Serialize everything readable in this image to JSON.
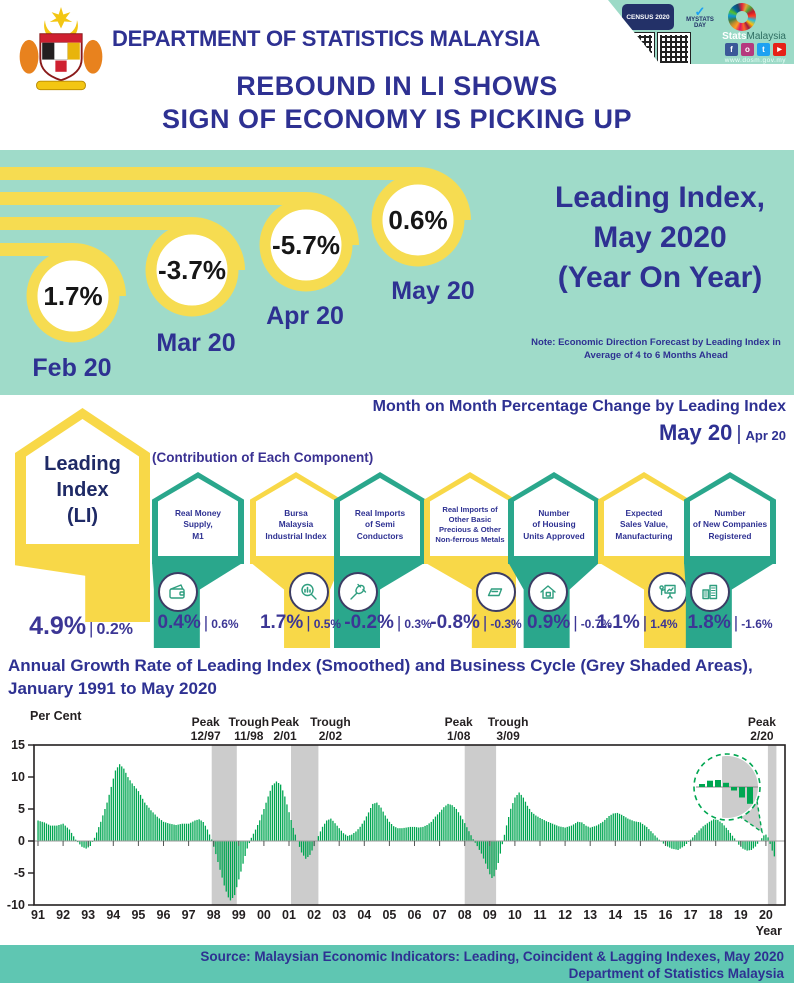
{
  "palette": {
    "navy": "#2e3192",
    "mint": "#9fdbc9",
    "yellow": "#f8d848",
    "teal": "#2aa78c",
    "green": "#00a651",
    "grey": "#cccccc",
    "ink": "#231f20"
  },
  "header": {
    "org": "DEPARTMENT OF STATISTICS MALAYSIA",
    "census_label": "CENSUS 2020",
    "mystats_label": "MYSTATS DAY",
    "brand_bold": "Stats",
    "brand_rest": "Malaysia",
    "website": "www.dosm.gov.my",
    "socials": [
      "f",
      "o",
      "t",
      "▶"
    ]
  },
  "title": {
    "line1": "REBOUND IN LI SHOWS",
    "line2": "SIGN OF ECONOMY IS PICKING UP"
  },
  "hero": {
    "bubbles": [
      {
        "month": "Feb 20",
        "value": "1.7%"
      },
      {
        "month": "Mar 20",
        "value": "-3.7%"
      },
      {
        "month": "Apr 20",
        "value": "-5.7%"
      },
      {
        "month": "May 20",
        "value": "0.6%"
      }
    ],
    "headline": "Leading Index,\nMay 2020\n(Year On Year)",
    "note": "Note: Economic Direction Forecast by Leading Index in\nAverage of 4 to 6 Months Ahead"
  },
  "mom": {
    "title": "Month on Month Percentage Change by Leading Index",
    "period_main": "May 20",
    "period_sep": "|",
    "period_sub": "Apr 20",
    "contribution_label": "(Contribution of Each Component)",
    "li": {
      "name": "Leading\nIndex\n(LI)",
      "value": "4.9%",
      "prev": "0.2%"
    },
    "components": [
      {
        "name": "Real Money\nSupply,\nM1",
        "value": "0.4%",
        "prev": "0.6%",
        "color": "teal",
        "icon": "wallet-icon"
      },
      {
        "name": "Bursa\nMalaysia\nIndustrial Index",
        "value": "1.7%",
        "prev": "0.5%",
        "color": "yellow",
        "icon": "chart-magnifier-icon"
      },
      {
        "name": "Real Imports\nof Semi\nConductors",
        "value": "-0.2%",
        "prev": "0.3%",
        "color": "teal",
        "icon": "plug-icon"
      },
      {
        "name": "Real Imports of\nOther Basic\nPrecious & Other\nNon-ferrous Metals",
        "value": "-0.8%",
        "prev": "-0.3%",
        "color": "yellow",
        "icon": "ingot-icon"
      },
      {
        "name": "Number\nof Housing\nUnits Approved",
        "value": "0.9%",
        "prev": "-0.7%",
        "color": "teal",
        "icon": "house-icon"
      },
      {
        "name": "Expected\nSales Value,\nManufacturing",
        "value": "1.1%",
        "prev": "1.4%",
        "color": "yellow",
        "icon": "presentation-icon"
      },
      {
        "name": "Number\nof New Companies\nRegistered",
        "value": "1.8%",
        "prev": "-1.6%",
        "color": "teal",
        "icon": "buildings-icon"
      }
    ]
  },
  "chart_title_line1": "Annual Growth Rate of Leading Index (Smoothed) and Business Cycle (Grey Shaded Areas),",
  "chart_title_line2": "January 1991 to May 2020",
  "chart_data": {
    "type": "bar",
    "title": "Annual Growth Rate of Leading Index (Smoothed) and Business Cycle (Grey Shaded Areas), January 1991 to May 2020",
    "ylabel": "Per Cent",
    "xlabel": "Year",
    "ylim": [
      -10,
      15
    ],
    "yticks": [
      15,
      10,
      5,
      0,
      -5,
      -10
    ],
    "xticks": [
      "91",
      "92",
      "93",
      "94",
      "95",
      "96",
      "97",
      "98",
      "99",
      "00",
      "01",
      "02",
      "03",
      "04",
      "05",
      "06",
      "07",
      "08",
      "09",
      "10",
      "11",
      "12",
      "13",
      "14",
      "15",
      "16",
      "17",
      "18",
      "19",
      "20"
    ],
    "x_range": [
      1991.0,
      2020.42
    ],
    "grid": false,
    "shaded_areas": [
      [
        1997.92,
        1998.92
      ],
      [
        2001.08,
        2002.17
      ],
      [
        2008.0,
        2009.25
      ],
      [
        2020.08,
        2020.42
      ]
    ],
    "annotations": [
      {
        "label": "Peak",
        "date": "12/97",
        "x": 1997.92
      },
      {
        "label": "Trough",
        "date": "11/98",
        "x": 1998.92
      },
      {
        "label": "Peak",
        "date": "2/01",
        "x": 2001.08
      },
      {
        "label": "Trough",
        "date": "2/02",
        "x": 2002.17
      },
      {
        "label": "Peak",
        "date": "1/08",
        "x": 2008.0
      },
      {
        "label": "Trough",
        "date": "3/09",
        "x": 2009.25
      },
      {
        "label": "Peak",
        "date": "2/20",
        "x": 2020.08
      }
    ],
    "series_keypoints": [
      [
        1991.0,
        3.2
      ],
      [
        1991.25,
        2.9
      ],
      [
        1991.5,
        2.4
      ],
      [
        1991.75,
        2.4
      ],
      [
        1992.0,
        2.7
      ],
      [
        1992.25,
        1.8
      ],
      [
        1992.5,
        0.2
      ],
      [
        1992.75,
        -0.9
      ],
      [
        1992.92,
        -1.2
      ],
      [
        1993.08,
        -0.8
      ],
      [
        1993.25,
        0.5
      ],
      [
        1993.5,
        3.0
      ],
      [
        1993.75,
        6.0
      ],
      [
        1993.92,
        8.5
      ],
      [
        1994.08,
        11.0
      ],
      [
        1994.25,
        12.0
      ],
      [
        1994.42,
        11.3
      ],
      [
        1994.58,
        10.0
      ],
      [
        1994.75,
        9.0
      ],
      [
        1995.0,
        7.8
      ],
      [
        1995.25,
        6.0
      ],
      [
        1995.5,
        4.8
      ],
      [
        1995.75,
        3.8
      ],
      [
        1996.0,
        3.0
      ],
      [
        1996.25,
        2.7
      ],
      [
        1996.5,
        2.5
      ],
      [
        1996.75,
        2.7
      ],
      [
        1997.0,
        2.7
      ],
      [
        1997.25,
        3.2
      ],
      [
        1997.42,
        3.4
      ],
      [
        1997.58,
        3.0
      ],
      [
        1997.75,
        1.8
      ],
      [
        1997.92,
        0.2
      ],
      [
        1998.08,
        -2.0
      ],
      [
        1998.25,
        -4.5
      ],
      [
        1998.42,
        -7.0
      ],
      [
        1998.58,
        -8.8
      ],
      [
        1998.67,
        -9.3
      ],
      [
        1998.83,
        -8.5
      ],
      [
        1999.0,
        -6.0
      ],
      [
        1999.17,
        -3.5
      ],
      [
        1999.33,
        -1.2
      ],
      [
        1999.5,
        0.5
      ],
      [
        1999.67,
        1.8
      ],
      [
        1999.83,
        3.2
      ],
      [
        2000.0,
        5.0
      ],
      [
        2000.17,
        7.0
      ],
      [
        2000.33,
        8.7
      ],
      [
        2000.5,
        9.3
      ],
      [
        2000.67,
        8.8
      ],
      [
        2000.83,
        7.0
      ],
      [
        2001.0,
        4.5
      ],
      [
        2001.17,
        2.0
      ],
      [
        2001.33,
        0.0
      ],
      [
        2001.5,
        -1.8
      ],
      [
        2001.67,
        -2.8
      ],
      [
        2001.83,
        -2.2
      ],
      [
        2002.0,
        -0.8
      ],
      [
        2002.17,
        0.8
      ],
      [
        2002.33,
        2.2
      ],
      [
        2002.5,
        3.2
      ],
      [
        2002.67,
        3.5
      ],
      [
        2002.83,
        2.8
      ],
      [
        2003.0,
        2.0
      ],
      [
        2003.17,
        1.2
      ],
      [
        2003.33,
        0.8
      ],
      [
        2003.5,
        1.0
      ],
      [
        2003.67,
        1.5
      ],
      [
        2003.83,
        2.2
      ],
      [
        2004.0,
        3.2
      ],
      [
        2004.17,
        4.5
      ],
      [
        2004.33,
        5.8
      ],
      [
        2004.5,
        6.0
      ],
      [
        2004.67,
        5.2
      ],
      [
        2004.83,
        4.0
      ],
      [
        2005.0,
        3.0
      ],
      [
        2005.17,
        2.3
      ],
      [
        2005.33,
        2.0
      ],
      [
        2005.5,
        2.0
      ],
      [
        2005.67,
        2.1
      ],
      [
        2005.83,
        2.2
      ],
      [
        2006.0,
        2.2
      ],
      [
        2006.17,
        2.1
      ],
      [
        2006.33,
        2.2
      ],
      [
        2006.5,
        2.5
      ],
      [
        2006.67,
        3.0
      ],
      [
        2006.83,
        3.8
      ],
      [
        2007.0,
        4.5
      ],
      [
        2007.17,
        5.3
      ],
      [
        2007.33,
        5.8
      ],
      [
        2007.5,
        5.6
      ],
      [
        2007.67,
        5.0
      ],
      [
        2007.83,
        4.0
      ],
      [
        2008.0,
        2.8
      ],
      [
        2008.17,
        1.5
      ],
      [
        2008.33,
        0.3
      ],
      [
        2008.5,
        -0.8
      ],
      [
        2008.67,
        -2.0
      ],
      [
        2008.83,
        -3.5
      ],
      [
        2009.0,
        -5.2
      ],
      [
        2009.08,
        -5.8
      ],
      [
        2009.17,
        -5.5
      ],
      [
        2009.33,
        -3.5
      ],
      [
        2009.5,
        -0.5
      ],
      [
        2009.67,
        2.5
      ],
      [
        2009.83,
        5.0
      ],
      [
        2010.0,
        6.8
      ],
      [
        2010.17,
        7.6
      ],
      [
        2010.33,
        6.8
      ],
      [
        2010.5,
        5.5
      ],
      [
        2010.67,
        4.5
      ],
      [
        2010.83,
        4.0
      ],
      [
        2011.0,
        3.6
      ],
      [
        2011.25,
        3.1
      ],
      [
        2011.5,
        2.7
      ],
      [
        2011.75,
        2.3
      ],
      [
        2012.0,
        2.1
      ],
      [
        2012.25,
        2.4
      ],
      [
        2012.5,
        3.0
      ],
      [
        2012.67,
        2.9
      ],
      [
        2012.83,
        2.4
      ],
      [
        2013.0,
        2.1
      ],
      [
        2013.25,
        2.4
      ],
      [
        2013.5,
        3.0
      ],
      [
        2013.75,
        3.9
      ],
      [
        2013.92,
        4.3
      ],
      [
        2014.08,
        4.4
      ],
      [
        2014.25,
        4.1
      ],
      [
        2014.5,
        3.5
      ],
      [
        2014.75,
        3.1
      ],
      [
        2015.0,
        2.9
      ],
      [
        2015.25,
        2.2
      ],
      [
        2015.5,
        1.2
      ],
      [
        2015.75,
        0.2
      ],
      [
        2016.0,
        -0.7
      ],
      [
        2016.25,
        -1.2
      ],
      [
        2016.5,
        -1.4
      ],
      [
        2016.75,
        -0.8
      ],
      [
        2017.0,
        0.2
      ],
      [
        2017.25,
        1.3
      ],
      [
        2017.5,
        2.3
      ],
      [
        2017.75,
        3.0
      ],
      [
        2017.92,
        3.4
      ],
      [
        2018.08,
        3.3
      ],
      [
        2018.25,
        2.8
      ],
      [
        2018.5,
        1.7
      ],
      [
        2018.75,
        0.4
      ],
      [
        2018.92,
        -0.6
      ],
      [
        2019.08,
        -1.2
      ],
      [
        2019.25,
        -1.5
      ],
      [
        2019.42,
        -1.4
      ],
      [
        2019.58,
        -0.9
      ],
      [
        2019.75,
        0.0
      ],
      [
        2019.92,
        0.9
      ],
      [
        2020.0,
        1.0
      ],
      [
        2020.08,
        0.6
      ],
      [
        2020.17,
        -0.5
      ],
      [
        2020.25,
        -1.5
      ],
      [
        2020.33,
        -2.4
      ]
    ],
    "inset_months": [
      2019.83,
      2019.92,
      2020.0,
      2020.08,
      2020.17,
      2020.25,
      2020.33
    ],
    "inset_shade_from": 2020.08
  },
  "footer": {
    "line1": "Source:  Malaysian Economic Indicators: Leading, Coincident & Lagging Indexes, May 2020",
    "line2": "Department of Statistics Malaysia"
  }
}
